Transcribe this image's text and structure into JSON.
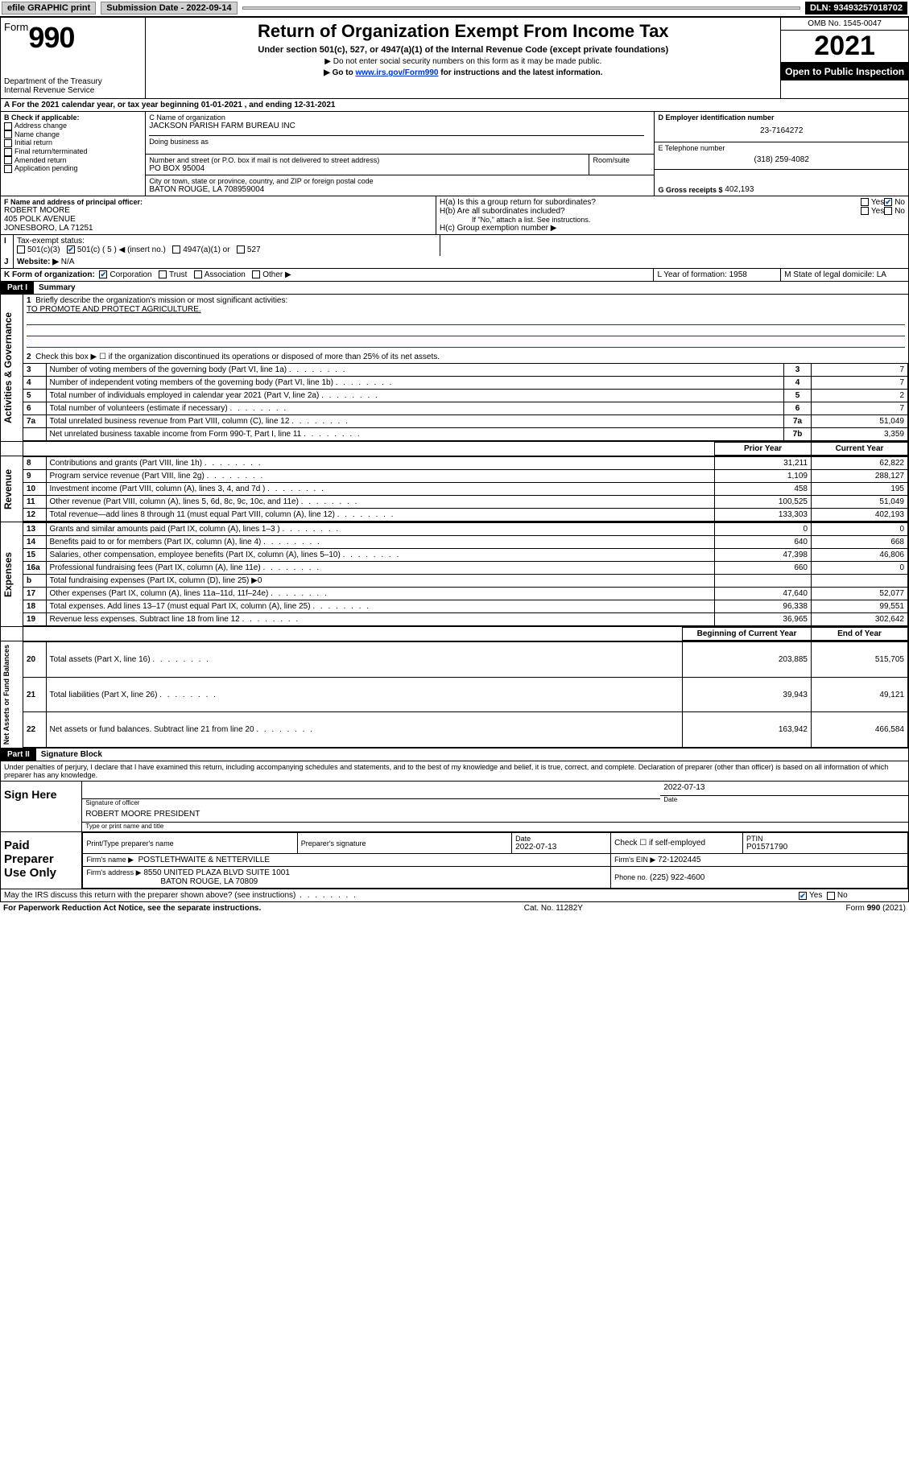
{
  "topbar": {
    "efile": "efile GRAPHIC print",
    "subdate_label": "Submission Date - 2022-09-14",
    "dln": "DLN: 93493257018702"
  },
  "header": {
    "form_word": "Form",
    "form_num": "990",
    "dept": "Department of the Treasury",
    "irs": "Internal Revenue Service",
    "title": "Return of Organization Exempt From Income Tax",
    "sub1": "Under section 501(c), 527, or 4947(a)(1) of the Internal Revenue Code (except private foundations)",
    "sub2": "▶ Do not enter social security numbers on this form as it may be made public.",
    "sub3_pre": "▶ Go to ",
    "sub3_link": "www.irs.gov/Form990",
    "sub3_post": " for instructions and the latest information.",
    "omb": "OMB No. 1545-0047",
    "year": "2021",
    "open": "Open to Public Inspection"
  },
  "A": {
    "line": "For the 2021 calendar year, or tax year beginning 01-01-2021   , and ending 12-31-2021"
  },
  "B": {
    "label": "B Check if applicable:",
    "opts": [
      "Address change",
      "Name change",
      "Initial return",
      "Final return/terminated",
      "Amended return",
      "Application pending"
    ]
  },
  "C": {
    "name_label": "C Name of organization",
    "name": "JACKSON PARISH FARM BUREAU INC",
    "dba_label": "Doing business as",
    "street_label": "Number and street (or P.O. box if mail is not delivered to street address)",
    "room_label": "Room/suite",
    "street": "PO BOX 95004",
    "city_label": "City or town, state or province, country, and ZIP or foreign postal code",
    "city": "BATON ROUGE, LA  708959004"
  },
  "D": {
    "label": "D Employer identification number",
    "val": "23-7164272"
  },
  "E": {
    "label": "E Telephone number",
    "val": "(318) 259-4082"
  },
  "G": {
    "label": "G Gross receipts $",
    "val": "402,193"
  },
  "F": {
    "label": "F  Name and address of principal officer:",
    "name": "ROBERT MOORE",
    "street": "405 POLK AVENUE",
    "city": "JONESBORO, LA  71251"
  },
  "H": {
    "a": "H(a)  Is this a group return for subordinates?",
    "b": "H(b)  Are all subordinates included?",
    "b_note": "If \"No,\" attach a list. See instructions.",
    "c": "H(c)  Group exemption number ▶"
  },
  "I": {
    "label": "Tax-exempt status:",
    "opts": [
      "501(c)(3)",
      "501(c) ( 5 ) ◀ (insert no.)",
      "4947(a)(1) or",
      "527"
    ]
  },
  "J": {
    "label": "Website: ▶",
    "val": "N/A"
  },
  "K": {
    "label": "K Form of organization:",
    "opts": [
      "Corporation",
      "Trust",
      "Association",
      "Other ▶"
    ]
  },
  "L": {
    "label": "L Year of formation: 1958"
  },
  "M": {
    "label": "M State of legal domicile: LA"
  },
  "part1": {
    "bar": "Part I",
    "title": "Summary",
    "q1": "Briefly describe the organization's mission or most significant activities:",
    "mission": "TO PROMOTE AND PROTECT AGRICULTURE.",
    "q2": "Check this box ▶ ☐ if the organization discontinued its operations or disposed of more than 25% of its net assets.",
    "sections": {
      "gov": "Activities & Governance",
      "rev": "Revenue",
      "exp": "Expenses",
      "net": "Net Assets or Fund Balances"
    },
    "rows_gov": [
      {
        "n": "3",
        "t": "Number of voting members of the governing body (Part VI, line 1a)",
        "ln": "3",
        "v": "7"
      },
      {
        "n": "4",
        "t": "Number of independent voting members of the governing body (Part VI, line 1b)",
        "ln": "4",
        "v": "7"
      },
      {
        "n": "5",
        "t": "Total number of individuals employed in calendar year 2021 (Part V, line 2a)",
        "ln": "5",
        "v": "2"
      },
      {
        "n": "6",
        "t": "Total number of volunteers (estimate if necessary)",
        "ln": "6",
        "v": "7"
      },
      {
        "n": "7a",
        "t": "Total unrelated business revenue from Part VIII, column (C), line 12",
        "ln": "7a",
        "v": "51,049"
      },
      {
        "n": "",
        "t": "Net unrelated business taxable income from Form 990-T, Part I, line 11",
        "ln": "7b",
        "v": "3,359"
      }
    ],
    "hdr_prior": "Prior Year",
    "hdr_curr": "Current Year",
    "rows_rev": [
      {
        "n": "8",
        "t": "Contributions and grants (Part VIII, line 1h)",
        "p": "31,211",
        "c": "62,822"
      },
      {
        "n": "9",
        "t": "Program service revenue (Part VIII, line 2g)",
        "p": "1,109",
        "c": "288,127"
      },
      {
        "n": "10",
        "t": "Investment income (Part VIII, column (A), lines 3, 4, and 7d )",
        "p": "458",
        "c": "195"
      },
      {
        "n": "11",
        "t": "Other revenue (Part VIII, column (A), lines 5, 6d, 8c, 9c, 10c, and 11e)",
        "p": "100,525",
        "c": "51,049"
      },
      {
        "n": "12",
        "t": "Total revenue—add lines 8 through 11 (must equal Part VIII, column (A), line 12)",
        "p": "133,303",
        "c": "402,193"
      }
    ],
    "rows_exp": [
      {
        "n": "13",
        "t": "Grants and similar amounts paid (Part IX, column (A), lines 1–3 )",
        "p": "0",
        "c": "0"
      },
      {
        "n": "14",
        "t": "Benefits paid to or for members (Part IX, column (A), line 4)",
        "p": "640",
        "c": "668"
      },
      {
        "n": "15",
        "t": "Salaries, other compensation, employee benefits (Part IX, column (A), lines 5–10)",
        "p": "47,398",
        "c": "46,806"
      },
      {
        "n": "16a",
        "t": "Professional fundraising fees (Part IX, column (A), line 11e)",
        "p": "660",
        "c": "0"
      },
      {
        "n": "b",
        "t": "Total fundraising expenses (Part IX, column (D), line 25) ▶0",
        "p": "",
        "c": "",
        "gray": true
      },
      {
        "n": "17",
        "t": "Other expenses (Part IX, column (A), lines 11a–11d, 11f–24e)",
        "p": "47,640",
        "c": "52,077"
      },
      {
        "n": "18",
        "t": "Total expenses. Add lines 13–17 (must equal Part IX, column (A), line 25)",
        "p": "96,338",
        "c": "99,551"
      },
      {
        "n": "19",
        "t": "Revenue less expenses. Subtract line 18 from line 12",
        "p": "36,965",
        "c": "302,642"
      }
    ],
    "hdr_begin": "Beginning of Current Year",
    "hdr_end": "End of Year",
    "rows_net": [
      {
        "n": "20",
        "t": "Total assets (Part X, line 16)",
        "p": "203,885",
        "c": "515,705"
      },
      {
        "n": "21",
        "t": "Total liabilities (Part X, line 26)",
        "p": "39,943",
        "c": "49,121"
      },
      {
        "n": "22",
        "t": "Net assets or fund balances. Subtract line 21 from line 20",
        "p": "163,942",
        "c": "466,584"
      }
    ]
  },
  "part2": {
    "bar": "Part II",
    "title": "Signature Block",
    "decl": "Under penalties of perjury, I declare that I have examined this return, including accompanying schedules and statements, and to the best of my knowledge and belief, it is true, correct, and complete. Declaration of preparer (other than officer) is based on all information of which preparer has any knowledge.",
    "sign_here": "Sign Here",
    "sig_officer": "Signature of officer",
    "sig_date": "2022-07-13",
    "date_label": "Date",
    "officer": "ROBERT MOORE  PRESIDENT",
    "officer_label": "Type or print name and title",
    "paid": "Paid Preparer Use Only",
    "prep_name_label": "Print/Type preparer's name",
    "prep_sig_label": "Preparer's signature",
    "prep_date_label": "Date",
    "prep_date": "2022-07-13",
    "self_emp": "Check ☐ if self-employed",
    "ptin_label": "PTIN",
    "ptin": "P01571790",
    "firm_name_label": "Firm's name    ▶",
    "firm_name": "POSTLETHWAITE & NETTERVILLE",
    "firm_ein_label": "Firm's EIN ▶",
    "firm_ein": "72-1202445",
    "firm_addr_label": "Firm's address ▶",
    "firm_addr1": "8550 UNITED PLAZA BLVD SUITE 1001",
    "firm_addr2": "BATON ROUGE, LA  70809",
    "phone_label": "Phone no.",
    "phone": "(225) 922-4600",
    "discuss": "May the IRS discuss this return with the preparer shown above? (see instructions)"
  },
  "footer": {
    "pra": "For Paperwork Reduction Act Notice, see the separate instructions.",
    "cat": "Cat. No. 11282Y",
    "form": "Form 990 (2021)"
  }
}
